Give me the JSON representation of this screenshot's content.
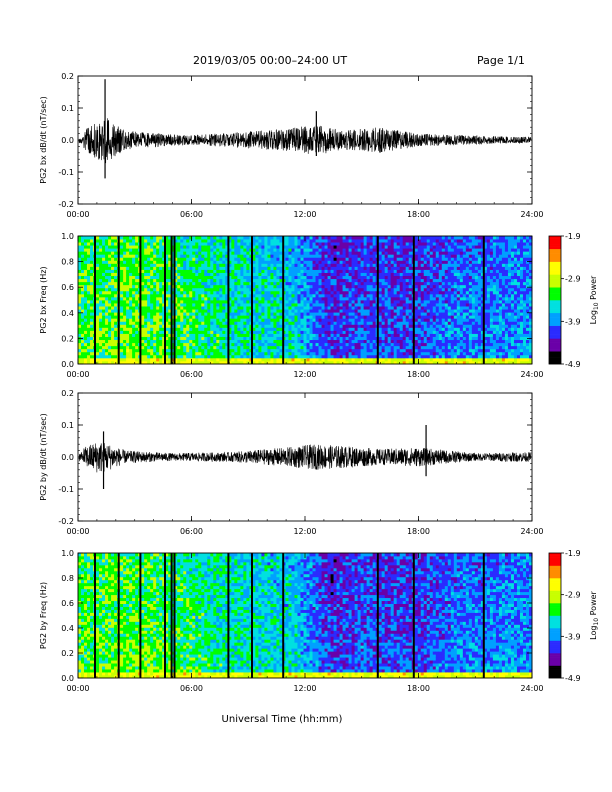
{
  "header": {
    "title": "2019/03/05   00:00–24:00 UT",
    "page": "Page 1/1"
  },
  "xlabel": "Universal Time (hh:mm)",
  "colorbar": {
    "label_prefix": "Log",
    "label_sub": "10",
    "label_suffix": " Power",
    "ticks": [
      "-1.9",
      "-2.9",
      "-3.9",
      "-4.9"
    ],
    "range": [
      -4.9,
      -1.9
    ],
    "colors": [
      "#000000",
      "#6a00a8",
      "#2b2bff",
      "#00a0ff",
      "#00e0e0",
      "#00ff00",
      "#c8ff00",
      "#ffff00",
      "#ff8c00",
      "#ff0000"
    ]
  },
  "chart_data": [
    {
      "type": "line",
      "ylabel": "PG2 bx dB/dt (nT/sec)",
      "xlim": [
        0,
        24
      ],
      "ylim": [
        -0.2,
        0.2
      ],
      "xticks": [
        "00:00",
        "06:00",
        "12:00",
        "18:00",
        "24:00"
      ],
      "yticks": [
        "0.2",
        "0.1",
        "0.0",
        "-0.1",
        "-0.2"
      ],
      "line_color": "#000000",
      "activity": [
        {
          "t": 0.3,
          "amp": 0.03
        },
        {
          "t": 1.0,
          "amp": 0.06
        },
        {
          "t": 1.3,
          "amp": 0.08
        },
        {
          "t": 2.5,
          "amp": 0.03
        },
        {
          "t": 4.5,
          "amp": 0.02
        },
        {
          "t": 6.0,
          "amp": 0.015
        },
        {
          "t": 8.5,
          "amp": 0.025
        },
        {
          "t": 11.0,
          "amp": 0.035
        },
        {
          "t": 12.5,
          "amp": 0.05
        },
        {
          "t": 14.0,
          "amp": 0.03
        },
        {
          "t": 16.0,
          "amp": 0.04
        },
        {
          "t": 18.0,
          "amp": 0.02
        },
        {
          "t": 20.5,
          "amp": 0.015
        },
        {
          "t": 23.0,
          "amp": 0.01
        }
      ],
      "spikes": [
        {
          "t": 1.43,
          "min": -0.12,
          "max": 0.19
        },
        {
          "t": 12.6,
          "min": -0.05,
          "max": 0.09
        }
      ]
    },
    {
      "type": "heatmap",
      "ylabel": "PG2 bx Freq (Hz)",
      "xlim": [
        0,
        24
      ],
      "ylim": [
        0.0,
        1.0
      ],
      "xticks": [
        "00:00",
        "06:00",
        "12:00",
        "18:00",
        "24:00"
      ],
      "yticks": [
        "1.0",
        "0.8",
        "0.6",
        "0.4",
        "0.2",
        "0.0"
      ],
      "z_unit": "log10 power",
      "background_by_hour": [
        {
          "t": 0,
          "z": -3.2
        },
        {
          "t": 3,
          "z": -3.1
        },
        {
          "t": 6,
          "z": -3.3
        },
        {
          "t": 9,
          "z": -3.5
        },
        {
          "t": 11.5,
          "z": -3.6
        },
        {
          "t": 13.5,
          "z": -4.2
        },
        {
          "t": 15,
          "z": -4.0
        },
        {
          "t": 17.5,
          "z": -4.1
        },
        {
          "t": 20,
          "z": -3.9
        },
        {
          "t": 24,
          "z": -3.8
        }
      ],
      "low_freq_band": {
        "fmax": 0.05,
        "z": -2.9
      },
      "gap_lines_hours": [
        0.9,
        2.15,
        3.3,
        4.6,
        4.95,
        5.1,
        7.95,
        9.2,
        10.85,
        15.85,
        17.75,
        21.45
      ]
    },
    {
      "type": "line",
      "ylabel": "PG2 by dB/dt (nT/sec)",
      "xlim": [
        0,
        24
      ],
      "ylim": [
        -0.2,
        0.2
      ],
      "xticks": [
        "00:00",
        "06:00",
        "12:00",
        "18:00",
        "24:00"
      ],
      "yticks": [
        "0.2",
        "0.1",
        "0.0",
        "-0.1",
        "-0.2"
      ],
      "line_color": "#000000",
      "activity": [
        {
          "t": 0.3,
          "amp": 0.03
        },
        {
          "t": 1.0,
          "amp": 0.05
        },
        {
          "t": 1.3,
          "amp": 0.05
        },
        {
          "t": 2.5,
          "amp": 0.02
        },
        {
          "t": 5.0,
          "amp": 0.012
        },
        {
          "t": 8.0,
          "amp": 0.015
        },
        {
          "t": 11.0,
          "amp": 0.03
        },
        {
          "t": 12.5,
          "amp": 0.04
        },
        {
          "t": 14.0,
          "amp": 0.035
        },
        {
          "t": 16.0,
          "amp": 0.025
        },
        {
          "t": 18.0,
          "amp": 0.03
        },
        {
          "t": 21.0,
          "amp": 0.012
        },
        {
          "t": 23.5,
          "amp": 0.015
        }
      ],
      "spikes": [
        {
          "t": 1.35,
          "min": -0.1,
          "max": 0.08
        },
        {
          "t": 18.4,
          "min": -0.06,
          "max": 0.1
        }
      ]
    },
    {
      "type": "heatmap",
      "ylabel": "PG2 by Freq (Hz)",
      "xlim": [
        0,
        24
      ],
      "ylim": [
        0.0,
        1.0
      ],
      "xticks": [
        "00:00",
        "06:00",
        "12:00",
        "18:00",
        "24:00"
      ],
      "yticks": [
        "1.0",
        "0.8",
        "0.6",
        "0.4",
        "0.2",
        "0.0"
      ],
      "z_unit": "log10 power",
      "background_by_hour": [
        {
          "t": 0,
          "z": -3.2
        },
        {
          "t": 3,
          "z": -3.1
        },
        {
          "t": 6,
          "z": -3.3
        },
        {
          "t": 9,
          "z": -3.5
        },
        {
          "t": 11.5,
          "z": -3.6
        },
        {
          "t": 13.5,
          "z": -4.2
        },
        {
          "t": 15,
          "z": -4.0
        },
        {
          "t": 17.5,
          "z": -4.1
        },
        {
          "t": 20,
          "z": -3.9
        },
        {
          "t": 24,
          "z": -3.8
        }
      ],
      "low_freq_band": {
        "fmax": 0.05,
        "z": -2.9
      },
      "gap_lines_hours": [
        0.9,
        2.15,
        3.3,
        4.6,
        4.95,
        5.1,
        7.95,
        9.2,
        10.85,
        15.85,
        17.75,
        21.45
      ]
    }
  ]
}
